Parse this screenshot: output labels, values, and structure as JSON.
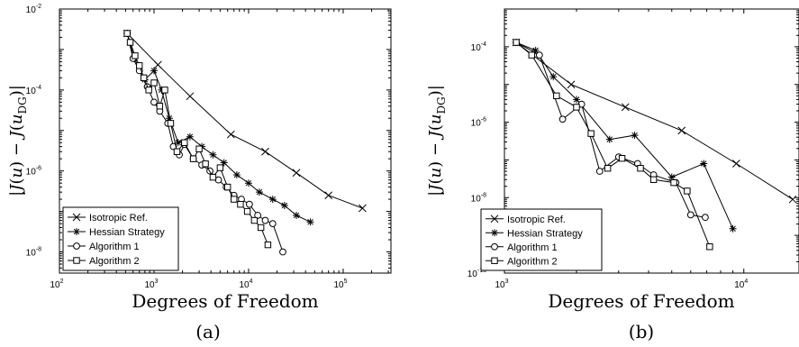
{
  "chart_data": [
    {
      "type": "line",
      "panel_label": "(a)",
      "xlabel": "Degrees of Freedom",
      "ylabel": "|J(u) − J(u_DG)|",
      "xscale": "log",
      "yscale": "log",
      "xlim": [
        100,
        320000
      ],
      "ylim": [
        3e-09,
        0.01
      ],
      "xticks": [
        {
          "base": "10",
          "exp": "2",
          "value": 100
        },
        {
          "base": "10",
          "exp": "3",
          "value": 1000
        },
        {
          "base": "10",
          "exp": "4",
          "value": 10000
        },
        {
          "base": "10",
          "exp": "5",
          "value": 100000
        }
      ],
      "yticks": [
        {
          "base": "10",
          "exp": "-8",
          "value": 1e-08
        },
        {
          "base": "10",
          "exp": "-6",
          "value": 1e-06
        },
        {
          "base": "10",
          "exp": "-4",
          "value": 0.0001
        },
        {
          "base": "10",
          "exp": "-2",
          "value": 0.01
        }
      ],
      "legend_position": "bottom-left",
      "series": [
        {
          "name": "Isotropic Ref.",
          "marker": "x",
          "x": [
            520,
            1100,
            2400,
            6500,
            15000,
            32000,
            70000,
            160000
          ],
          "y": [
            0.0025,
            0.00042,
            7e-05,
            8e-06,
            3e-06,
            9e-07,
            2.5e-07,
            1.2e-07
          ]
        },
        {
          "name": "Hessian Strategy",
          "marker": "*",
          "x": [
            520,
            620,
            800,
            1000,
            1200,
            1450,
            1800,
            2400,
            3200,
            4200,
            5500,
            7500,
            10000,
            13000,
            18000,
            24000,
            32000,
            45000
          ],
          "y": [
            0.0025,
            0.0006,
            0.00018,
            0.0003,
            0.0001,
            2e-05,
            5e-06,
            7e-06,
            4e-06,
            2.5e-06,
            1.6e-06,
            8e-07,
            5e-07,
            3e-07,
            2e-07,
            1.4e-07,
            8e-08,
            5.5e-08
          ]
        },
        {
          "name": "Algorithm 1",
          "marker": "circle",
          "x": [
            520,
            600,
            700,
            850,
            1000,
            1150,
            1400,
            1600,
            1850,
            2100,
            2600,
            3200,
            3900,
            4800,
            5800,
            7000,
            8400,
            10200,
            12500,
            15000,
            18000,
            23000
          ],
          "y": [
            0.0025,
            0.0006,
            0.0003,
            0.00012,
            5e-05,
            3e-05,
            1.5e-05,
            4e-06,
            2.5e-06,
            4.5e-06,
            2e-06,
            1.4e-06,
            1e-06,
            6e-07,
            4e-07,
            2.5e-07,
            2e-07,
            1.5e-07,
            8e-08,
            6e-08,
            5e-08,
            1e-08
          ]
        },
        {
          "name": "Algorithm 2",
          "marker": "square",
          "x": [
            520,
            560,
            630,
            700,
            780,
            880,
            1000,
            1150,
            1300,
            1500,
            1750,
            2100,
            2600,
            3000,
            3500,
            4200,
            5000,
            6000,
            7000,
            8200,
            9700,
            11500,
            13500,
            16000
          ],
          "y": [
            0.0025,
            0.0015,
            0.0007,
            0.0004,
            0.0002,
            0.0001,
            0.00015,
            4e-05,
            0.0001,
            1.5e-05,
            3e-06,
            5e-06,
            2e-06,
            3.5e-06,
            1.5e-06,
            7e-07,
            1.2e-06,
            4e-07,
            2e-07,
            1.5e-07,
            1e-07,
            6e-08,
            4e-08,
            1.5e-08
          ]
        }
      ]
    },
    {
      "type": "line",
      "panel_label": "(b)",
      "xlabel": "Degrees of Freedom",
      "ylabel": "|J(u) − J(u_DG)|",
      "xscale": "log",
      "yscale": "log",
      "xlim": [
        1000,
        17000
      ],
      "ylim": [
        1e-10,
        0.001
      ],
      "xticks": [
        {
          "base": "10",
          "exp": "3",
          "value": 1000
        },
        {
          "base": "10",
          "exp": "4",
          "value": 10000
        }
      ],
      "yticks": [
        {
          "base": "10",
          "exp": "-10",
          "value": 1e-10
        },
        {
          "base": "10",
          "exp": "-8",
          "value": 1e-08
        },
        {
          "base": "10",
          "exp": "-6",
          "value": 1e-06
        },
        {
          "base": "10",
          "exp": "-4",
          "value": 0.0001
        }
      ],
      "legend_position": "bottom-left",
      "series": [
        {
          "name": "Isotropic Ref.",
          "marker": "x",
          "x": [
            1120,
            1900,
            3200,
            5500,
            9300,
            16000
          ],
          "y": [
            0.00013,
            1e-05,
            2.5e-06,
            6e-07,
            8e-08,
            9e-09
          ]
        },
        {
          "name": "Hessian Strategy",
          "marker": "*",
          "x": [
            1120,
            1350,
            1600,
            2000,
            2750,
            3500,
            5000,
            6800,
            9000
          ],
          "y": [
            0.00013,
            8e-05,
            1.6e-05,
            4e-06,
            3.5e-07,
            4.5e-07,
            3.5e-08,
            8e-08,
            1.5e-09
          ]
        },
        {
          "name": "Algorithm 1",
          "marker": "circle",
          "x": [
            1120,
            1400,
            1750,
            2100,
            2500,
            3000,
            3600,
            4200,
            5200,
            6000,
            6900
          ],
          "y": [
            0.00013,
            6e-05,
            1.2e-06,
            3e-06,
            5e-08,
            1.2e-07,
            8e-08,
            4e-08,
            2.5e-08,
            3.5e-09,
            3e-09
          ]
        },
        {
          "name": "Algorithm 2",
          "marker": "square",
          "x": [
            1120,
            1300,
            1650,
            2000,
            2300,
            2700,
            3100,
            3700,
            4200,
            5100,
            5800,
            7200
          ],
          "y": [
            0.00013,
            6e-05,
            5e-06,
            2.5e-06,
            5e-07,
            6e-08,
            1.1e-07,
            6e-08,
            3e-08,
            2.5e-08,
            1.5e-08,
            5e-10
          ]
        }
      ]
    }
  ]
}
